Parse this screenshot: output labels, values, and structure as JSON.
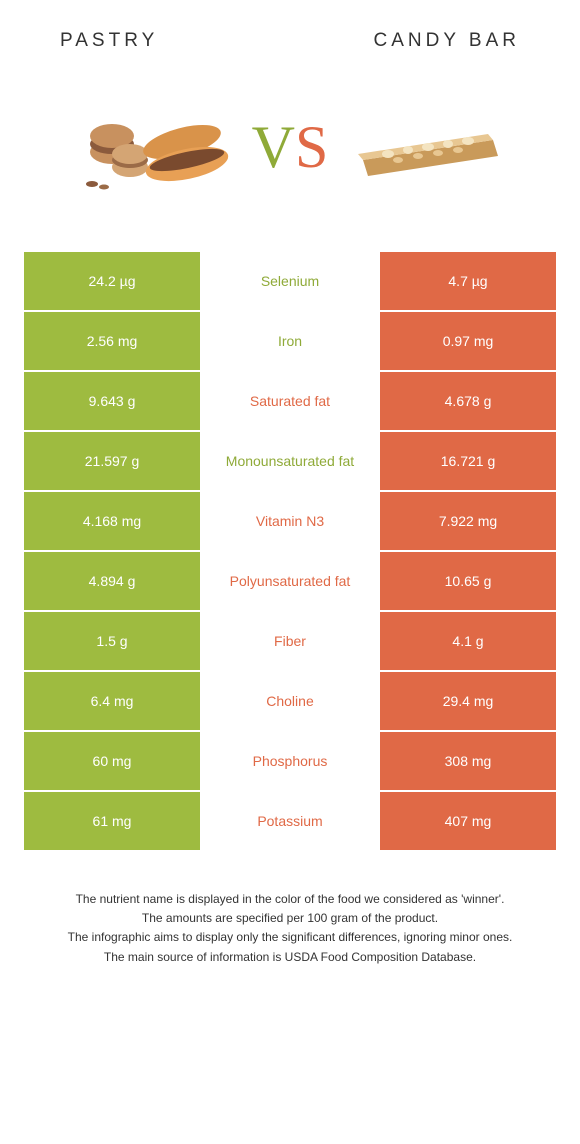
{
  "header": {
    "left": "PASTRY",
    "right": "CANDY BAR"
  },
  "vs": {
    "v": "V",
    "s": "S"
  },
  "colors": {
    "green": "#9ebb40",
    "orange": "#e06946",
    "green_text": "#8faa38",
    "orange_text": "#e06946",
    "bg": "#ffffff"
  },
  "typography": {
    "header_fontsize": 19,
    "header_letterspacing": 4,
    "vs_fontsize": 60,
    "cell_fontsize": 14,
    "footer_fontsize": 12
  },
  "rows": [
    {
      "left": "24.2 µg",
      "mid": "Selenium",
      "right": "4.7 µg",
      "winner": "green"
    },
    {
      "left": "2.56 mg",
      "mid": "Iron",
      "right": "0.97 mg",
      "winner": "green"
    },
    {
      "left": "9.643 g",
      "mid": "Saturated fat",
      "right": "4.678 g",
      "winner": "orange"
    },
    {
      "left": "21.597 g",
      "mid": "Monounsaturated fat",
      "right": "16.721 g",
      "winner": "green"
    },
    {
      "left": "4.168 mg",
      "mid": "Vitamin N3",
      "right": "7.922 mg",
      "winner": "orange"
    },
    {
      "left": "4.894 g",
      "mid": "Polyunsaturated fat",
      "right": "10.65 g",
      "winner": "orange"
    },
    {
      "left": "1.5 g",
      "mid": "Fiber",
      "right": "4.1 g",
      "winner": "orange"
    },
    {
      "left": "6.4 mg",
      "mid": "Choline",
      "right": "29.4 mg",
      "winner": "orange"
    },
    {
      "left": "60 mg",
      "mid": "Phosphorus",
      "right": "308 mg",
      "winner": "orange"
    },
    {
      "left": "61 mg",
      "mid": "Potassium",
      "right": "407 mg",
      "winner": "orange"
    }
  ],
  "footer": {
    "l1": "The nutrient name is displayed in the color of the food we considered as 'winner'.",
    "l2": "The amounts are specified per 100 gram of the product.",
    "l3": "The infographic aims to display only the significant differences, ignoring minor ones.",
    "l4": "The main source of information is USDA Food Composition Database."
  }
}
